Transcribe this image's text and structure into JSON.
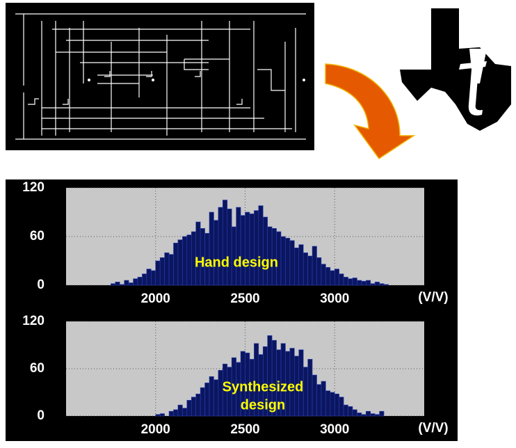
{
  "chart_data": [
    {
      "type": "histogram",
      "bins": [
        1500,
        1525,
        1550,
        1575,
        1600,
        1625,
        1650,
        1675,
        1700,
        1725,
        1750,
        1775,
        1800,
        1825,
        1850,
        1875,
        1900,
        1925,
        1950,
        1975,
        2000,
        2025,
        2050,
        2075,
        2100,
        2125,
        2150,
        2175,
        2200,
        2225,
        2250,
        2275,
        2300,
        2325,
        2350,
        2375,
        2400,
        2425,
        2450,
        2475,
        2500,
        2525,
        2550,
        2575,
        2600,
        2625,
        2650,
        2675,
        2700,
        2725,
        2750,
        2775,
        2800,
        2825,
        2850,
        2875,
        2900,
        2925,
        2950,
        2975,
        3000,
        3025,
        3050,
        3075,
        3100,
        3125,
        3150,
        3175,
        3200,
        3225,
        3250,
        3275,
        3300,
        3325,
        3350,
        3375,
        3400,
        3425,
        3450,
        3475,
        3500
      ],
      "values": [
        0,
        0,
        0,
        0,
        0,
        0,
        0,
        0,
        0,
        0,
        2,
        4,
        1,
        6,
        3,
        8,
        10,
        14,
        20,
        18,
        30,
        34,
        40,
        38,
        52,
        56,
        60,
        62,
        66,
        78,
        70,
        64,
        90,
        80,
        96,
        105,
        94,
        72,
        96,
        86,
        90,
        88,
        92,
        98,
        84,
        72,
        70,
        66,
        60,
        58,
        55,
        46,
        50,
        40,
        36,
        48,
        34,
        26,
        22,
        18,
        20,
        14,
        10,
        8,
        9,
        6,
        5,
        6,
        2,
        4,
        2,
        1,
        0,
        0,
        0,
        0,
        0,
        0,
        0,
        0
      ],
      "color": "#0b1660",
      "xlim": [
        1500,
        3500
      ],
      "xticks": [
        2000,
        2500,
        3000
      ],
      "ylim": [
        0,
        120
      ],
      "yticks": [
        0,
        60,
        120
      ],
      "xlabel": "(V/V)",
      "annotation": [
        "Hand design"
      ],
      "grid": true
    },
    {
      "type": "histogram",
      "bins": [
        1500,
        1525,
        1550,
        1575,
        1600,
        1625,
        1650,
        1675,
        1700,
        1725,
        1750,
        1775,
        1800,
        1825,
        1850,
        1875,
        1900,
        1925,
        1950,
        1975,
        2000,
        2025,
        2050,
        2075,
        2100,
        2125,
        2150,
        2175,
        2200,
        2225,
        2250,
        2275,
        2300,
        2325,
        2350,
        2375,
        2400,
        2425,
        2450,
        2475,
        2500,
        2525,
        2550,
        2575,
        2600,
        2625,
        2650,
        2675,
        2700,
        2725,
        2750,
        2775,
        2800,
        2825,
        2850,
        2875,
        2900,
        2925,
        2950,
        2975,
        3000,
        3025,
        3050,
        3075,
        3100,
        3125,
        3150,
        3175,
        3200,
        3225,
        3250,
        3275,
        3300,
        3325,
        3350,
        3375,
        3400,
        3425,
        3450,
        3475,
        3500
      ],
      "values": [
        0,
        0,
        0,
        0,
        0,
        0,
        0,
        0,
        0,
        0,
        0,
        0,
        0,
        0,
        0,
        0,
        0,
        0,
        0,
        0,
        2,
        3,
        0,
        6,
        8,
        14,
        10,
        20,
        24,
        28,
        36,
        42,
        50,
        46,
        58,
        66,
        62,
        74,
        68,
        82,
        80,
        72,
        92,
        78,
        88,
        102,
        96,
        84,
        92,
        82,
        86,
        76,
        84,
        62,
        72,
        52,
        40,
        44,
        32,
        30,
        28,
        24,
        14,
        12,
        8,
        4,
        2,
        6,
        3,
        2,
        6,
        0,
        0,
        0,
        0,
        0,
        0,
        0,
        0,
        0
      ],
      "color": "#0b1660",
      "xlim": [
        1500,
        3500
      ],
      "xticks": [
        2000,
        2500,
        3000
      ],
      "ylim": [
        0,
        120
      ],
      "yticks": [
        0,
        60,
        120
      ],
      "xlabel": "(V/V)",
      "annotation": [
        "Synthesized",
        "design"
      ],
      "grid": true
    }
  ]
}
